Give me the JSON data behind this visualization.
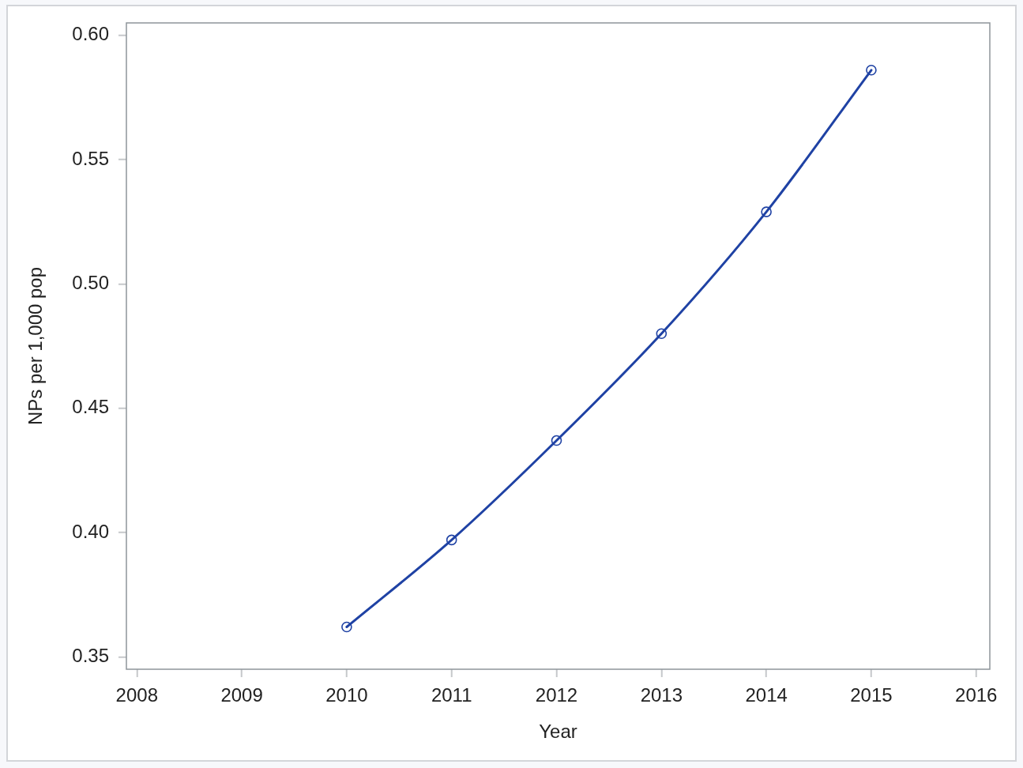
{
  "chart_data": {
    "type": "line",
    "xlabel": "Year",
    "ylabel": "NPs per 1,000 pop",
    "x": [
      2010,
      2011,
      2012,
      2013,
      2014,
      2015
    ],
    "values": [
      0.362,
      0.397,
      0.437,
      0.48,
      0.529,
      0.586
    ],
    "color": "#1f42a4",
    "marker": "circle",
    "line_style": "solid",
    "xlim": [
      2007.9,
      2016.13
    ],
    "xticks": [
      2008,
      2009,
      2010,
      2011,
      2012,
      2013,
      2014,
      2015,
      2016
    ],
    "ylim": [
      0.345,
      0.605
    ],
    "yticks": [
      0.35,
      {
        "value": 0.4,
        "label": "0.40"
      },
      0.45,
      {
        "value": 0.5,
        "label": "0.50"
      },
      0.55,
      {
        "value": 0.6,
        "label": "0.60"
      }
    ]
  }
}
